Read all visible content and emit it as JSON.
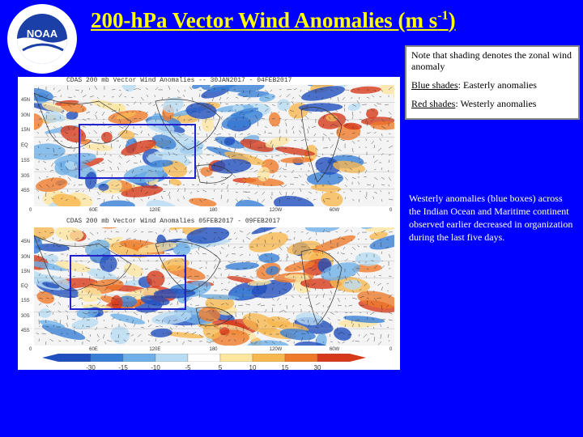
{
  "slide": {
    "title_main": "200-hPa Vector Wind Anomalies (m s",
    "title_sup": "-1",
    "title_end": ")",
    "logo_text": "NATIONAL OCEANIC AND ATMOSPHERIC ADMINISTRATION · U.S. DEPARTMENT OF COMMERCE",
    "logo_abbr": "NOAA"
  },
  "note_box": {
    "line1": "Note that shading denotes the zonal wind anomaly",
    "blue_label": "Blue shades",
    "blue_text": ": Easterly anomalies",
    "red_label": "Red shades",
    "red_text": ": Westerly anomalies"
  },
  "description": "Westerly anomalies (blue boxes) across the Indian Ocean and Maritime continent observed earlier decreased in organization during the last five days.",
  "maps": {
    "top_header": "CDAS 200 mb Vector Wind Anomalies -- 30JAN2017 - 04FEB2017",
    "bottom_header": "CDAS 200 mb Vector Wind Anomalies    05FEB2017 - 09FEB2017",
    "lat_labels": [
      "45N",
      "30N",
      "15N",
      "EQ",
      "15S",
      "30S",
      "45S"
    ],
    "lon_labels": [
      "0",
      "60E",
      "120E",
      "180",
      "120W",
      "60W",
      "0"
    ]
  },
  "colorbar": {
    "labels": [
      "-30",
      "-15",
      "-10",
      "-5",
      "5",
      "10",
      "15",
      "30"
    ],
    "colors": [
      "#1f4fbf",
      "#3a7fd6",
      "#6fb0e8",
      "#b8dcf4",
      "#ffffff",
      "#fde6a0",
      "#f8b850",
      "#ef7a2a",
      "#d63a1a"
    ]
  },
  "colors": {
    "background": "#0000ff",
    "title": "#ffff00",
    "box": "#2222cc"
  }
}
